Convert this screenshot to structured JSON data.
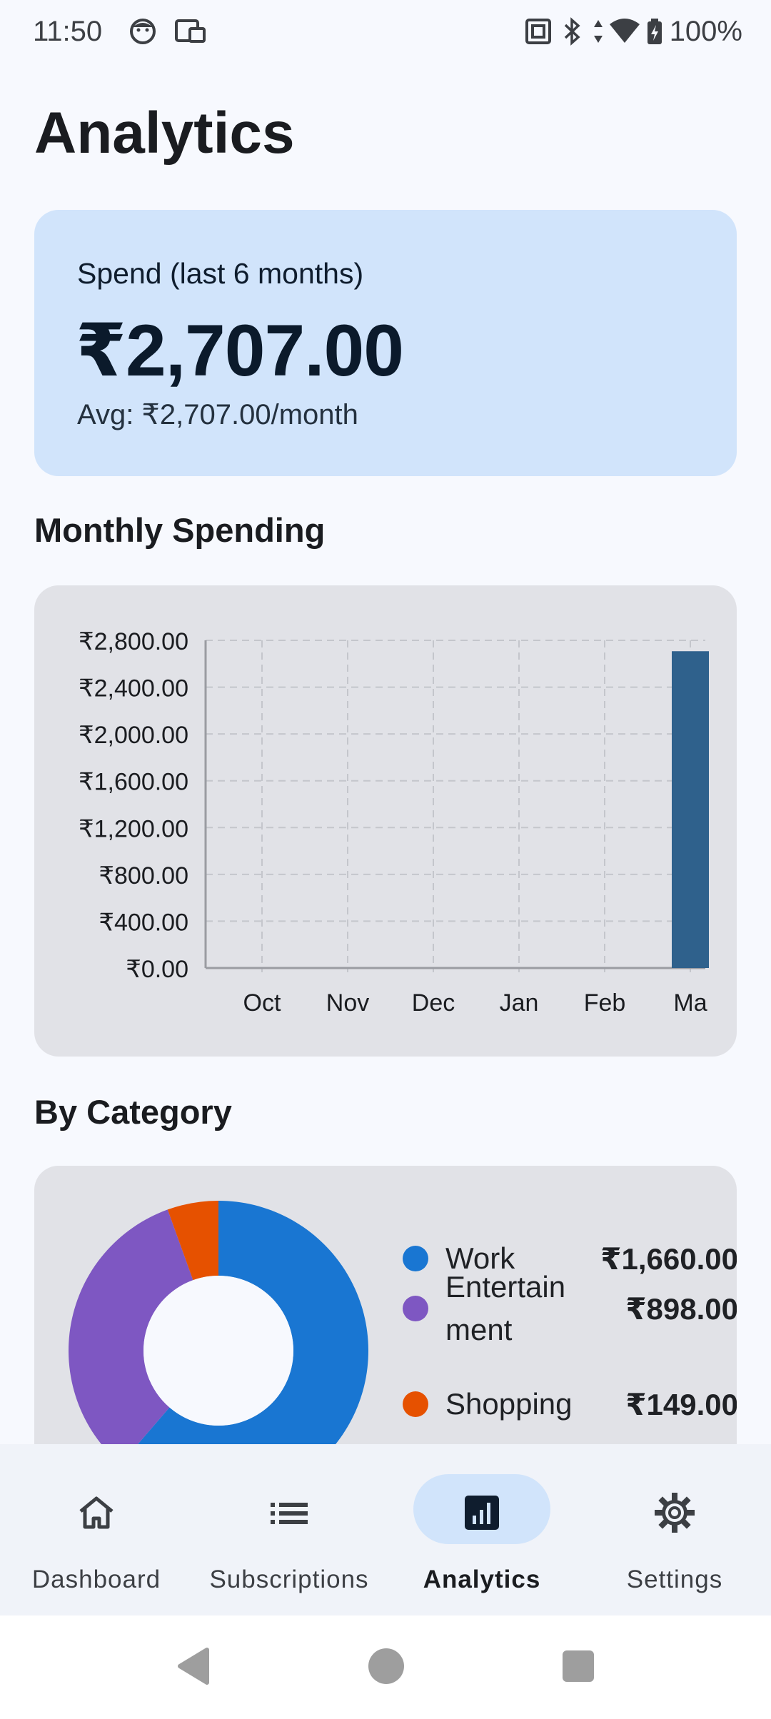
{
  "status_bar": {
    "time": "11:50",
    "battery": "100%",
    "icons": [
      "face-icon",
      "cast-icon",
      "nfc-icon",
      "bluetooth-icon",
      "data-arrows-icon",
      "wifi-icon",
      "battery-charging-icon"
    ]
  },
  "page_title": "Analytics",
  "summary": {
    "label": "Spend (last 6 months)",
    "amount": "₹2,707.00",
    "average": "Avg: ₹2,707.00/month"
  },
  "monthly_section_title": "Monthly Spending",
  "category_section_title": "By Category",
  "chart_data": [
    {
      "type": "bar",
      "title": "",
      "xlabel": "",
      "ylabel": "",
      "categories": [
        "Oct",
        "Nov",
        "Dec",
        "Jan",
        "Feb",
        "Ma"
      ],
      "values": [
        0,
        0,
        0,
        0,
        0,
        2707
      ],
      "ylim": [
        0,
        2800
      ],
      "yticks": [
        "₹0.00",
        "₹400.00",
        "₹800.00",
        "₹1,200.00",
        "₹1,600.00",
        "₹2,000.00",
        "₹2,400.00",
        "₹2,800.00"
      ],
      "ytick_values": [
        0,
        400,
        800,
        1200,
        1600,
        2000,
        2400,
        2800
      ],
      "grid": true,
      "bar_color": "#2f618c",
      "grid_color": "#c4c6cc"
    },
    {
      "type": "pie",
      "donut": true,
      "categories": [
        "Work",
        "Entertainment",
        "Shopping"
      ],
      "legend_labels": [
        "Work",
        "Entertain\nment",
        "Shopping"
      ],
      "values": [
        1660,
        898,
        149
      ],
      "value_labels": [
        "₹1,660.00",
        "₹898.00",
        "₹149.00"
      ],
      "colors": [
        "#1976d2",
        "#7e57c2",
        "#e65100"
      ]
    }
  ],
  "bottom_nav": {
    "items": [
      {
        "label": "Dashboard",
        "icon": "home-icon",
        "active": false
      },
      {
        "label": "Subscriptions",
        "icon": "list-icon",
        "active": false
      },
      {
        "label": "Analytics",
        "icon": "analytics-icon",
        "active": true
      },
      {
        "label": "Settings",
        "icon": "gear-icon",
        "active": false
      }
    ]
  },
  "system_nav": {
    "icons": [
      "back-icon",
      "home-circle-icon",
      "recents-icon"
    ]
  },
  "colors": {
    "background": "#f7f9fe",
    "summary_card": "#d1e4fb",
    "chart_card": "#e1e2e7",
    "accent": "#1976d2"
  }
}
